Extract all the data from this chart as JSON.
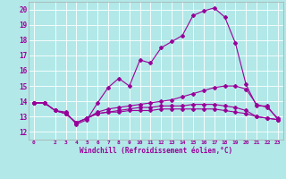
{
  "xlabel": "Windchill (Refroidissement éolien,°C)",
  "background_color": "#b2e8e8",
  "grid_color": "#ffffff",
  "line_color": "#990099",
  "x_ticks": [
    0,
    2,
    3,
    4,
    5,
    6,
    7,
    8,
    9,
    10,
    11,
    12,
    13,
    14,
    15,
    16,
    17,
    18,
    19,
    20,
    21,
    22,
    23
  ],
  "ylim": [
    11.5,
    20.5
  ],
  "xlim": [
    -0.5,
    23.5
  ],
  "yticks": [
    12,
    13,
    14,
    15,
    16,
    17,
    18,
    19,
    20
  ],
  "series": [
    {
      "x": [
        0,
        1,
        2,
        3,
        4,
        5,
        6,
        7,
        8,
        9,
        10,
        11,
        12,
        13,
        14,
        15,
        16,
        17,
        18,
        19,
        20,
        21,
        22,
        23
      ],
      "y": [
        13.9,
        13.9,
        13.4,
        13.3,
        12.5,
        12.8,
        13.9,
        14.9,
        15.5,
        15.0,
        16.7,
        16.5,
        17.5,
        17.9,
        18.3,
        19.6,
        19.9,
        20.1,
        19.5,
        17.8,
        15.1,
        13.7,
        13.7,
        12.8
      ]
    },
    {
      "x": [
        0,
        1,
        2,
        3,
        4,
        5,
        6,
        7,
        8,
        9,
        10,
        11,
        12,
        13,
        14,
        15,
        16,
        17,
        18,
        19,
        20,
        21,
        22,
        23
      ],
      "y": [
        13.9,
        13.9,
        13.4,
        13.2,
        12.6,
        12.9,
        13.3,
        13.5,
        13.6,
        13.7,
        13.8,
        13.9,
        14.0,
        14.1,
        14.3,
        14.5,
        14.7,
        14.9,
        15.0,
        15.0,
        14.8,
        13.8,
        13.6,
        12.9
      ]
    },
    {
      "x": [
        0,
        1,
        2,
        3,
        4,
        5,
        6,
        7,
        8,
        9,
        10,
        11,
        12,
        13,
        14,
        15,
        16,
        17,
        18,
        19,
        20,
        21,
        22,
        23
      ],
      "y": [
        13.9,
        13.9,
        13.4,
        13.2,
        12.6,
        12.9,
        13.2,
        13.3,
        13.3,
        13.4,
        13.4,
        13.4,
        13.5,
        13.5,
        13.5,
        13.5,
        13.5,
        13.5,
        13.4,
        13.3,
        13.2,
        13.0,
        12.9,
        12.8
      ]
    },
    {
      "x": [
        0,
        1,
        2,
        3,
        4,
        5,
        6,
        7,
        8,
        9,
        10,
        11,
        12,
        13,
        14,
        15,
        16,
        17,
        18,
        19,
        20,
        21,
        22,
        23
      ],
      "y": [
        13.9,
        13.9,
        13.4,
        13.2,
        12.6,
        12.9,
        13.2,
        13.3,
        13.4,
        13.5,
        13.6,
        13.6,
        13.7,
        13.7,
        13.7,
        13.8,
        13.8,
        13.8,
        13.7,
        13.6,
        13.4,
        13.0,
        12.9,
        12.8
      ]
    }
  ]
}
